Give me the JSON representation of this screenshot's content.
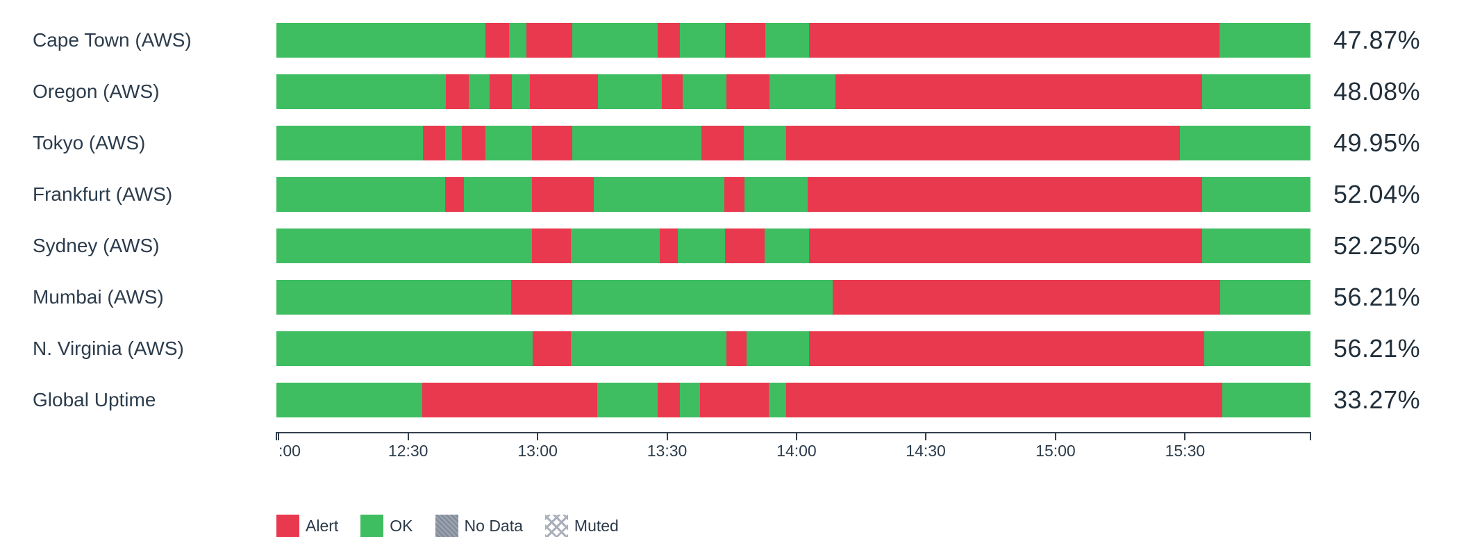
{
  "chart_data": {
    "type": "bar",
    "subtype": "status-timeline-horizontal",
    "layout": {
      "grid": false,
      "legend_position": "bottom-left",
      "value_labels_position": "right"
    },
    "status_colors": {
      "alert": "#e9394e",
      "ok": "#3ebd61",
      "nodata": "#848d9b"
    },
    "x_axis": {
      "unit": "time",
      "visible_range": "12:00 - 16:00",
      "ticks": [
        {
          "pos_pct": 0,
          "label": "",
          "align": "center"
        },
        {
          "pos_pct": 0.2,
          "label": ":00",
          "align": "left"
        },
        {
          "pos_pct": 12.74,
          "label": "12:30",
          "align": "center"
        },
        {
          "pos_pct": 25.26,
          "label": "13:00",
          "align": "center"
        },
        {
          "pos_pct": 37.78,
          "label": "13:30",
          "align": "center"
        },
        {
          "pos_pct": 50.3,
          "label": "14:00",
          "align": "center"
        },
        {
          "pos_pct": 62.8,
          "label": "14:30",
          "align": "center"
        },
        {
          "pos_pct": 75.35,
          "label": "15:00",
          "align": "center"
        },
        {
          "pos_pct": 87.87,
          "label": "15:30",
          "align": "center"
        },
        {
          "pos_pct": 100,
          "label": "",
          "align": "center"
        }
      ]
    },
    "legend": [
      {
        "label": "Alert",
        "status": "alert"
      },
      {
        "label": "OK",
        "status": "ok"
      },
      {
        "label": "No Data",
        "status": "nodata"
      },
      {
        "label": "Muted",
        "status": "muted"
      }
    ],
    "rows": [
      {
        "label": "Cape Town (AWS)",
        "uptime": "47.87%",
        "segments": [
          {
            "status": "ok",
            "width_pct": 20.2
          },
          {
            "status": "alert",
            "width_pct": 2.3
          },
          {
            "status": "ok",
            "width_pct": 1.7
          },
          {
            "status": "alert",
            "width_pct": 4.4
          },
          {
            "status": "ok",
            "width_pct": 8.3
          },
          {
            "status": "alert",
            "width_pct": 2.1
          },
          {
            "status": "ok",
            "width_pct": 4.4
          },
          {
            "status": "alert",
            "width_pct": 3.9
          },
          {
            "status": "ok",
            "width_pct": 4.2
          },
          {
            "status": "alert",
            "width_pct": 39.7
          },
          {
            "status": "ok",
            "width_pct": 8.8
          }
        ]
      },
      {
        "label": "Oregon (AWS)",
        "uptime": "48.08%",
        "segments": [
          {
            "status": "ok",
            "width_pct": 16.4
          },
          {
            "status": "alert",
            "width_pct": 2.2
          },
          {
            "status": "ok",
            "width_pct": 2.0
          },
          {
            "status": "alert",
            "width_pct": 2.2
          },
          {
            "status": "ok",
            "width_pct": 1.7
          },
          {
            "status": "alert",
            "width_pct": 6.6
          },
          {
            "status": "ok",
            "width_pct": 6.2
          },
          {
            "status": "alert",
            "width_pct": 2.0
          },
          {
            "status": "ok",
            "width_pct": 4.2
          },
          {
            "status": "alert",
            "width_pct": 4.2
          },
          {
            "status": "ok",
            "width_pct": 6.4
          },
          {
            "status": "alert",
            "width_pct": 35.4
          },
          {
            "status": "ok",
            "width_pct": 10.5
          }
        ]
      },
      {
        "label": "Tokyo (AWS)",
        "uptime": "49.95%",
        "segments": [
          {
            "status": "ok",
            "width_pct": 14.2
          },
          {
            "status": "alert",
            "width_pct": 2.1
          },
          {
            "status": "ok",
            "width_pct": 1.6
          },
          {
            "status": "alert",
            "width_pct": 2.3
          },
          {
            "status": "ok",
            "width_pct": 4.5
          },
          {
            "status": "alert",
            "width_pct": 3.9
          },
          {
            "status": "ok",
            "width_pct": 12.5
          },
          {
            "status": "alert",
            "width_pct": 4.1
          },
          {
            "status": "ok",
            "width_pct": 4.1
          },
          {
            "status": "alert",
            "width_pct": 38.1
          },
          {
            "status": "ok",
            "width_pct": 12.6
          }
        ]
      },
      {
        "label": "Frankfurt (AWS)",
        "uptime": "52.04%",
        "segments": [
          {
            "status": "ok",
            "width_pct": 16.3
          },
          {
            "status": "alert",
            "width_pct": 1.8
          },
          {
            "status": "ok",
            "width_pct": 6.6
          },
          {
            "status": "alert",
            "width_pct": 6.0
          },
          {
            "status": "ok",
            "width_pct": 12.6
          },
          {
            "status": "alert",
            "width_pct": 2.0
          },
          {
            "status": "ok",
            "width_pct": 6.1
          },
          {
            "status": "alert",
            "width_pct": 38.1
          },
          {
            "status": "ok",
            "width_pct": 10.5
          }
        ]
      },
      {
        "label": "Sydney (AWS)",
        "uptime": "52.25%",
        "segments": [
          {
            "status": "ok",
            "width_pct": 24.7
          },
          {
            "status": "alert",
            "width_pct": 3.8
          },
          {
            "status": "ok",
            "width_pct": 8.6
          },
          {
            "status": "alert",
            "width_pct": 1.7
          },
          {
            "status": "ok",
            "width_pct": 4.6
          },
          {
            "status": "alert",
            "width_pct": 3.8
          },
          {
            "status": "ok",
            "width_pct": 4.3
          },
          {
            "status": "alert",
            "width_pct": 38.0
          },
          {
            "status": "ok",
            "width_pct": 10.5
          }
        ]
      },
      {
        "label": "Mumbai (AWS)",
        "uptime": "56.21%",
        "segments": [
          {
            "status": "ok",
            "width_pct": 22.7
          },
          {
            "status": "alert",
            "width_pct": 5.9
          },
          {
            "status": "ok",
            "width_pct": 25.2
          },
          {
            "status": "alert",
            "width_pct": 37.5
          },
          {
            "status": "ok",
            "width_pct": 8.7
          }
        ]
      },
      {
        "label": "N. Virginia (AWS)",
        "uptime": "56.21%",
        "segments": [
          {
            "status": "ok",
            "width_pct": 24.8
          },
          {
            "status": "alert",
            "width_pct": 3.7
          },
          {
            "status": "ok",
            "width_pct": 15.0
          },
          {
            "status": "alert",
            "width_pct": 2.0
          },
          {
            "status": "ok",
            "width_pct": 6.0
          },
          {
            "status": "alert",
            "width_pct": 38.2
          },
          {
            "status": "ok",
            "width_pct": 10.3
          }
        ]
      },
      {
        "label": "Global Uptime",
        "uptime": "33.27%",
        "segments": [
          {
            "status": "ok",
            "width_pct": 14.1
          },
          {
            "status": "alert",
            "width_pct": 16.9
          },
          {
            "status": "ok",
            "width_pct": 5.9
          },
          {
            "status": "alert",
            "width_pct": 2.1
          },
          {
            "status": "ok",
            "width_pct": 2.0
          },
          {
            "status": "alert",
            "width_pct": 6.6
          },
          {
            "status": "ok",
            "width_pct": 1.7
          },
          {
            "status": "alert",
            "width_pct": 42.2
          },
          {
            "status": "ok",
            "width_pct": 8.5
          }
        ]
      }
    ]
  }
}
